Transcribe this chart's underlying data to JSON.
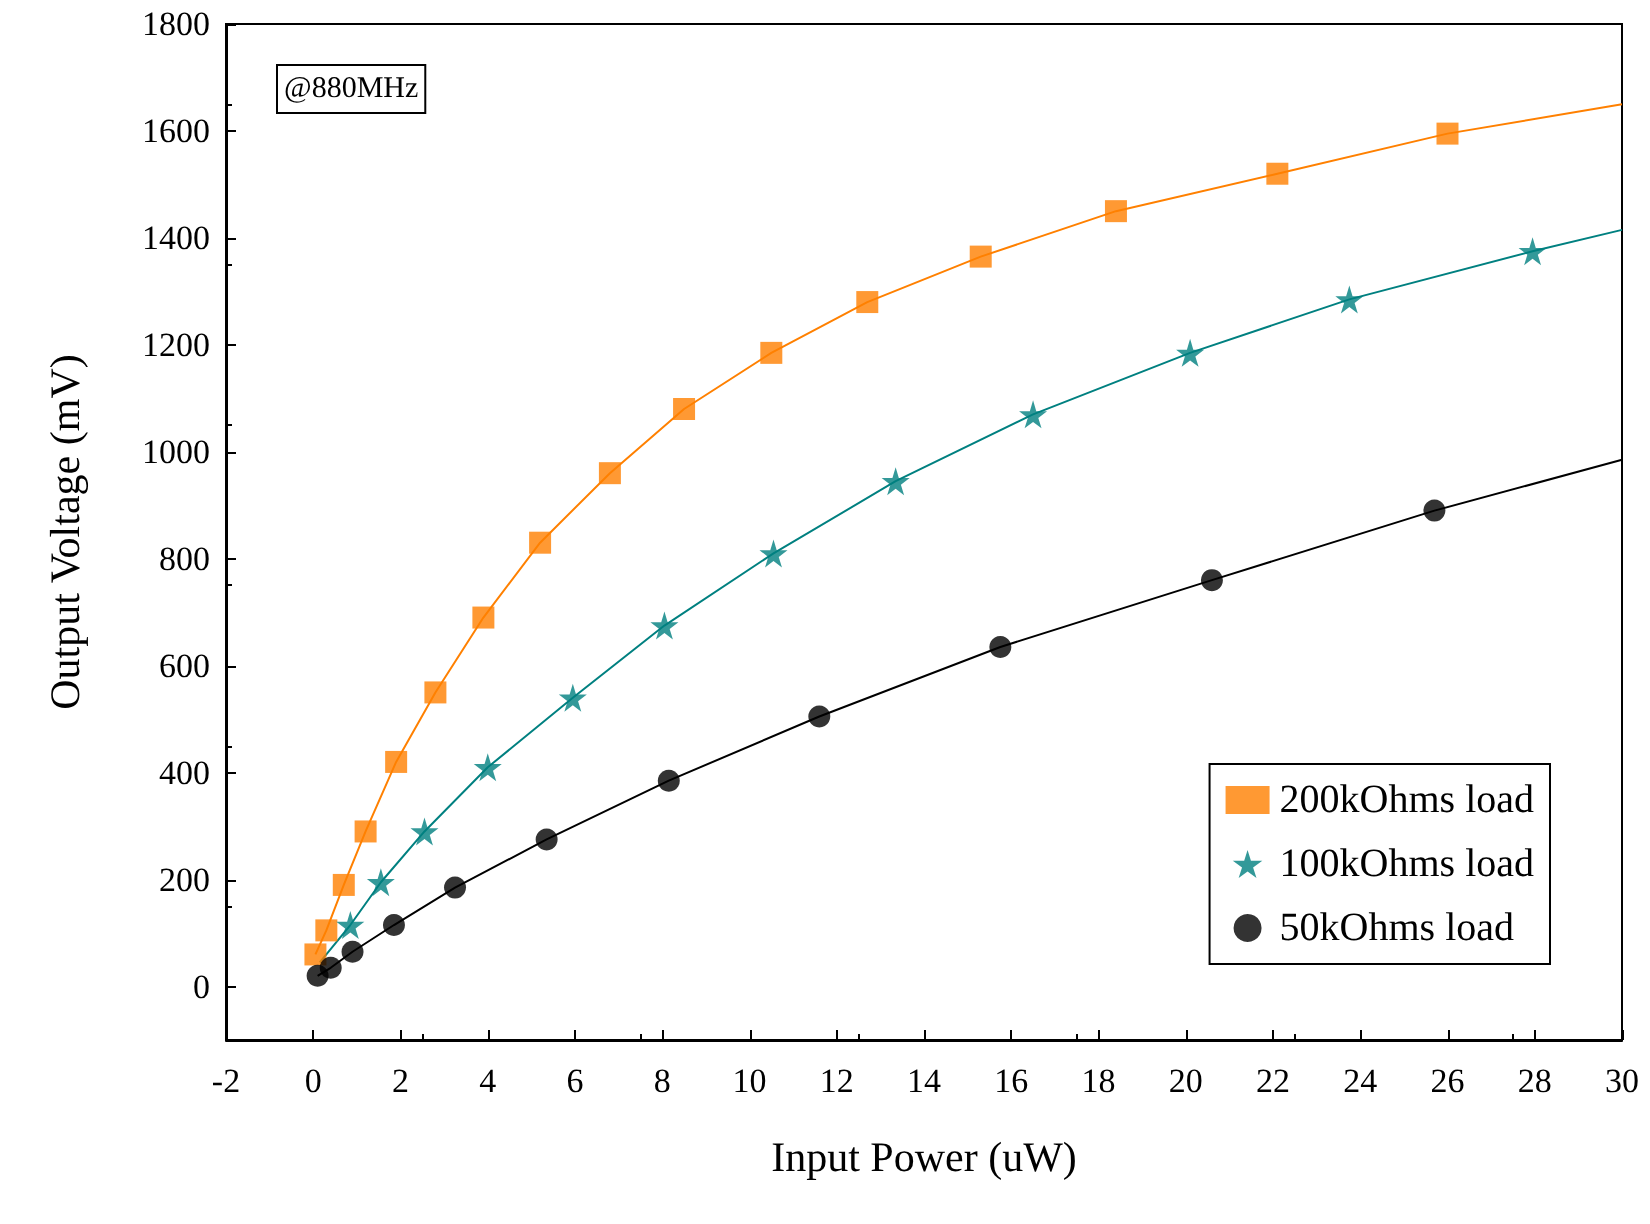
{
  "chart_data": {
    "type": "scatter",
    "xlabel": "Input Power (uW)",
    "ylabel": "Output Voltage (mV)",
    "xlim": [
      -2,
      30
    ],
    "xticks": [
      -2,
      0,
      2,
      4,
      6,
      8,
      10,
      12,
      14,
      16,
      18,
      20,
      22,
      24,
      26,
      28,
      30
    ],
    "ylim": [
      -100,
      1800
    ],
    "yticks": [
      0,
      200,
      400,
      600,
      800,
      1000,
      1200,
      1400,
      1600,
      1800
    ],
    "grid": false,
    "legend": "bottom right",
    "annotations": [
      "@880MHz"
    ],
    "series": [
      {
        "name": "200kOhms load",
        "marker": "square",
        "color": "#ff8000",
        "x": [
          0.05,
          0.3,
          0.7,
          1.2,
          1.9,
          2.8,
          3.9,
          5.2,
          6.8,
          8.5,
          10.5,
          12.7,
          15.3,
          18.4,
          22.1,
          26.0
        ],
        "values": [
          60,
          105,
          190,
          290,
          420,
          550,
          690,
          830,
          960,
          1080,
          1185,
          1280,
          1365,
          1450,
          1520,
          1595
        ]
      },
      {
        "name": "100kOhms load",
        "marker": "star",
        "color": "#008080",
        "x": [
          0.85,
          1.55,
          2.55,
          4.0,
          5.95,
          8.05,
          10.55,
          13.35,
          16.5,
          20.1,
          23.75,
          27.95
        ],
        "values": [
          115,
          195,
          290,
          410,
          540,
          675,
          810,
          945,
          1070,
          1185,
          1285,
          1375
        ]
      },
      {
        "name": "50kOhms load",
        "marker": "circle",
        "color": "#000000",
        "x": [
          0.1,
          0.4,
          0.9,
          1.85,
          3.25,
          5.35,
          8.15,
          11.6,
          15.75,
          20.6,
          25.7
        ],
        "values": [
          20,
          35,
          65,
          115,
          185,
          275,
          385,
          505,
          635,
          760,
          890
        ]
      },
      {
        "type": "line",
        "marker": "none",
        "color": "#ff8000",
        "x": [
          0.05,
          0.3,
          0.7,
          1.2,
          1.9,
          2.8,
          3.9,
          5.2,
          6.8,
          8.5,
          10.5,
          12.7,
          15.3,
          18.4,
          22.1,
          26.0,
          30
        ],
        "values": [
          60,
          105,
          190,
          290,
          420,
          550,
          690,
          830,
          960,
          1080,
          1185,
          1280,
          1365,
          1450,
          1520,
          1595,
          1650
        ]
      },
      {
        "type": "line",
        "marker": "none",
        "color": "#008080",
        "x": [
          0.15,
          0.85,
          1.55,
          2.55,
          4.0,
          5.95,
          8.05,
          10.55,
          13.35,
          16.5,
          20.1,
          23.75,
          27.95,
          30
        ],
        "values": [
          45,
          115,
          195,
          290,
          410,
          540,
          675,
          810,
          945,
          1070,
          1185,
          1285,
          1375,
          1415
        ]
      },
      {
        "type": "line",
        "marker": "none",
        "color": "#000000",
        "x": [
          0.1,
          0.4,
          0.9,
          1.85,
          3.25,
          5.35,
          8.15,
          11.6,
          15.75,
          20.6,
          25.7,
          30
        ],
        "values": [
          20,
          35,
          65,
          115,
          185,
          275,
          385,
          505,
          635,
          760,
          890,
          985
        ]
      }
    ]
  }
}
